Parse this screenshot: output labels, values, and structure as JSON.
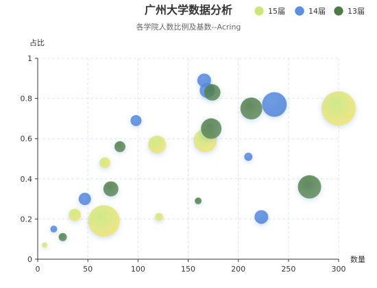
{
  "chart_data": {
    "type": "scatter",
    "title": "广州大学数据分析",
    "subtitle": "各学院人数比例及基数--Acring",
    "xlabel": "数量",
    "ylabel": "占比",
    "xlim": [
      0,
      300
    ],
    "ylim": [
      0,
      1
    ],
    "x_ticks": [
      "0",
      "50",
      "100",
      "150",
      "200",
      "250",
      "300"
    ],
    "y_ticks": [
      "0",
      "0.2",
      "0.4",
      "0.6",
      "0.8",
      "1"
    ],
    "grid": true,
    "legend_position": "top-right",
    "series": [
      {
        "name": "15届",
        "color": "#c8e87a",
        "edge_color": "#f2e36b",
        "points": [
          {
            "x": 7,
            "y": 0.07,
            "size": 4
          },
          {
            "x": 37,
            "y": 0.22,
            "size": 9
          },
          {
            "x": 67,
            "y": 0.48,
            "size": 8
          },
          {
            "x": 66,
            "y": 0.19,
            "size": 23
          },
          {
            "x": 119,
            "y": 0.57,
            "size": 13
          },
          {
            "x": 121,
            "y": 0.21,
            "size": 6
          },
          {
            "x": 167,
            "y": 0.59,
            "size": 17
          },
          {
            "x": 300,
            "y": 0.75,
            "size": 25
          }
        ]
      },
      {
        "name": "14届",
        "color": "#5b8fe0",
        "edge_color": "#4a7fd6",
        "points": [
          {
            "x": 16,
            "y": 0.15,
            "size": 5
          },
          {
            "x": 47,
            "y": 0.3,
            "size": 9
          },
          {
            "x": 98,
            "y": 0.69,
            "size": 8
          },
          {
            "x": 166,
            "y": 0.89,
            "size": 10
          },
          {
            "x": 169,
            "y": 0.84,
            "size": 11
          },
          {
            "x": 210,
            "y": 0.51,
            "size": 6
          },
          {
            "x": 223,
            "y": 0.21,
            "size": 10
          },
          {
            "x": 236,
            "y": 0.77,
            "size": 18
          }
        ]
      },
      {
        "name": "13届",
        "color": "#4f7a46",
        "edge_color": "#5d8a50",
        "points": [
          {
            "x": 25,
            "y": 0.11,
            "size": 6
          },
          {
            "x": 73,
            "y": 0.35,
            "size": 11
          },
          {
            "x": 82,
            "y": 0.56,
            "size": 8
          },
          {
            "x": 160,
            "y": 0.29,
            "size": 5
          },
          {
            "x": 174,
            "y": 0.83,
            "size": 12
          },
          {
            "x": 173,
            "y": 0.65,
            "size": 15
          },
          {
            "x": 213,
            "y": 0.75,
            "size": 16
          },
          {
            "x": 271,
            "y": 0.36,
            "size": 17
          }
        ]
      }
    ]
  }
}
